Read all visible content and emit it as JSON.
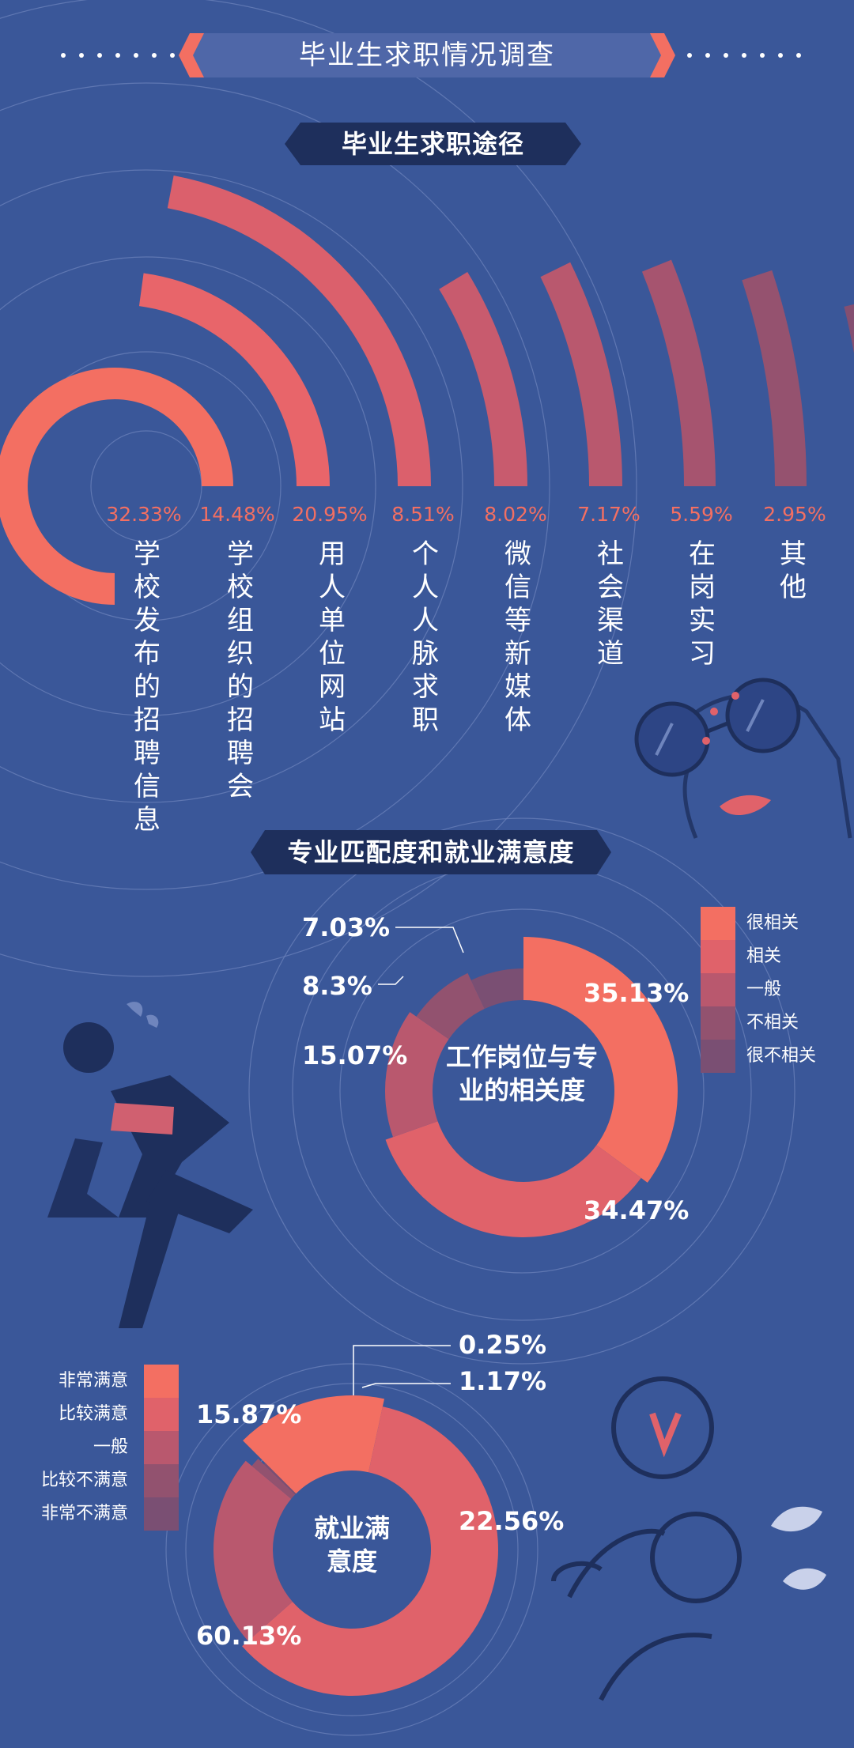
{
  "header": {
    "title": "毕业生求职情况调查"
  },
  "section1": {
    "title": "毕业生求职途径"
  },
  "section2": {
    "title": "专业匹配度和就业满意度"
  },
  "colors": {
    "background": "#3a5799",
    "coral": "#f36f62",
    "navy": "#1e2f5c"
  },
  "chart_data": [
    {
      "type": "radial-bar",
      "categories": [
        "学校发布的招聘信息",
        "学校组织的招聘会",
        "用人单位网站",
        "个人人脉求职",
        "微信等新媒体",
        "社会渠道",
        "在岗实习",
        "其他"
      ],
      "values": [
        32.33,
        14.48,
        20.95,
        8.51,
        8.02,
        7.17,
        5.59,
        2.95
      ],
      "value_labels": [
        "32.33%",
        "14.48%",
        "20.95%",
        "8.51%",
        "8.02%",
        "7.17%",
        "5.59%",
        "2.95%"
      ]
    },
    {
      "type": "pie",
      "title": "工作岗位与专业的相关度",
      "categories": [
        "很相关",
        "相关",
        "一般",
        "不相关",
        "很不相关"
      ],
      "values": [
        35.13,
        34.47,
        15.07,
        8.3,
        7.03
      ],
      "value_labels": [
        "35.13%",
        "34.47%",
        "15.07%",
        "8.3%",
        "7.03%"
      ],
      "colors": [
        "#f36f62",
        "#e0626a",
        "#b9586e",
        "#92526f",
        "#7a4f73"
      ]
    },
    {
      "type": "pie",
      "title": "就业满意度",
      "categories": [
        "非常满意",
        "比较满意",
        "一般",
        "比较不满意",
        "非常不满意"
      ],
      "values": [
        15.87,
        60.13,
        22.56,
        1.17,
        0.25
      ],
      "value_labels": [
        "15.87%",
        "60.13%",
        "22.56%",
        "1.17%",
        "0.25%"
      ],
      "colors": [
        "#f36f62",
        "#e0626a",
        "#b9586e",
        "#92526f",
        "#7a4f73"
      ]
    }
  ]
}
